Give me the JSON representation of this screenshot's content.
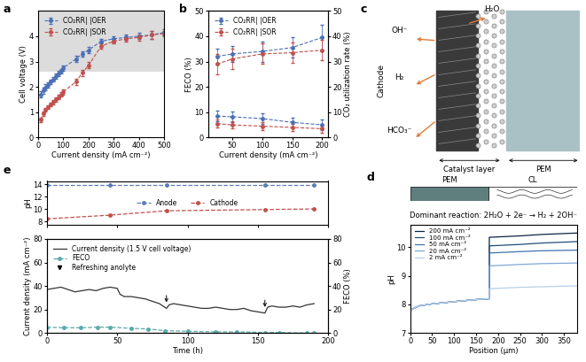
{
  "chart_data": [
    {
      "panel": "a",
      "type": "line",
      "xlabel": "Current density (mA cm⁻²)",
      "ylabel": "Cell voltage (V)",
      "xlim": [
        0,
        500
      ],
      "xticks": [
        0,
        100,
        200,
        300,
        400,
        500
      ],
      "ylim": [
        0,
        5
      ],
      "yticks": [
        0,
        1,
        2,
        3,
        4
      ],
      "legend": "upper left",
      "shaded_band": [
        2.6,
        5
      ],
      "marker": "circle",
      "line_style": "dashed",
      "x": [
        10,
        20,
        30,
        40,
        50,
        60,
        70,
        80,
        90,
        100,
        150,
        175,
        200,
        250,
        300,
        350,
        400,
        450,
        500
      ],
      "series": [
        {
          "name": "CO₂RR| |OER",
          "color": "#4a6fb5",
          "values": [
            1.7,
            1.85,
            1.98,
            2.08,
            2.2,
            2.3,
            2.42,
            2.52,
            2.62,
            2.75,
            3.1,
            3.3,
            3.45,
            3.8,
            3.9,
            3.95,
            4.0,
            4.05,
            4.15
          ],
          "errors": [
            0.12,
            0.12,
            0.12,
            0.1,
            0.1,
            0.1,
            0.1,
            0.1,
            0.1,
            0.1,
            0.12,
            0.12,
            0.12,
            0.1,
            0.1,
            0.1,
            0.12,
            0.15,
            0.12
          ]
        },
        {
          "name": "CO₂RR| |SOR",
          "color": "#c0504d",
          "values": [
            0.7,
            0.95,
            1.1,
            1.2,
            1.3,
            1.4,
            1.5,
            1.6,
            1.7,
            1.8,
            2.2,
            2.55,
            2.85,
            3.6,
            3.8,
            3.9,
            3.95,
            4.05,
            4.1
          ],
          "errors": [
            0.08,
            0.08,
            0.08,
            0.08,
            0.08,
            0.08,
            0.08,
            0.08,
            0.08,
            0.1,
            0.12,
            0.12,
            0.12,
            0.1,
            0.1,
            0.1,
            0.12,
            0.15,
            0.12
          ]
        }
      ]
    },
    {
      "panel": "b",
      "type": "line",
      "xlabel": "Current density (mA cm⁻²)",
      "ylabel": "FECO (%)",
      "y2label": "CO₂ utilization rate (%)",
      "xlim": [
        10,
        210
      ],
      "xticks": [
        50,
        100,
        150,
        200
      ],
      "ylim": [
        0,
        50
      ],
      "yticks": [
        0,
        10,
        20,
        30,
        40,
        50
      ],
      "y2lim": [
        0,
        50
      ],
      "y2ticks": [
        0,
        10,
        20,
        30,
        40,
        50
      ],
      "legend": "upper left",
      "marker": "circle",
      "line_style": "dashed",
      "x": [
        25,
        50,
        100,
        150,
        200
      ],
      "series": [
        {
          "name": "CO₂RR| |OER",
          "color": "#4a6fb5",
          "values": [
            8.5,
            8.2,
            7.5,
            6,
            5
          ],
          "errors": [
            2,
            2,
            2,
            2,
            2
          ]
        },
        {
          "name": "CO₂RR| |SOR",
          "color": "#c0504d",
          "values": [
            5.5,
            5,
            4.5,
            4,
            3.5
          ],
          "errors": [
            1.5,
            1.5,
            1.5,
            1.5,
            1.5
          ]
        },
        {
          "name": "CO₂RR| |OER",
          "color": "#4a6fb5",
          "axis": "y2",
          "values": [
            32,
            33,
            34,
            35.5,
            39.5
          ],
          "errors": [
            3,
            3,
            4,
            4,
            5
          ]
        },
        {
          "name": "CO₂RR| |SOR",
          "color": "#c0504d",
          "axis": "y2",
          "values": [
            29,
            31,
            33,
            33.5,
            34.5
          ],
          "errors": [
            4,
            4,
            4,
            4,
            4
          ]
        }
      ]
    },
    {
      "panel": "d",
      "type": "line",
      "xlabel": "Position (μm)",
      "ylabel": "pH",
      "header": {
        "left": "PEM",
        "right": "CL"
      },
      "annotation": "Dominant reaction: 2H₂O + 2e⁻ → H₂ + 2OH⁻",
      "xlim": [
        0,
        380
      ],
      "xticks": [
        0,
        50,
        100,
        150,
        200,
        250,
        300,
        350
      ],
      "ylim": [
        7,
        10.8
      ],
      "yticks": [
        7,
        8,
        9,
        10
      ],
      "legend": "upper left",
      "line_style": "solid",
      "marker": "none",
      "x": [
        0,
        20,
        50,
        100,
        150,
        180,
        180,
        250,
        300,
        380
      ],
      "series": [
        {
          "name": "200 mA cm⁻²",
          "color": "#0b2545",
          "values": [
            7.8,
            7.95,
            8.02,
            8.1,
            8.17,
            8.2,
            10.35,
            10.4,
            10.45,
            10.5
          ]
        },
        {
          "name": "100 mA cm⁻²",
          "color": "#1f4e79",
          "values": [
            7.8,
            7.95,
            8.02,
            8.1,
            8.17,
            8.2,
            10.05,
            10.1,
            10.15,
            10.2
          ]
        },
        {
          "name": "50 mA cm⁻²",
          "color": "#3f72af",
          "values": [
            7.8,
            7.95,
            8.02,
            8.1,
            8.17,
            8.2,
            9.8,
            9.85,
            9.88,
            9.9
          ]
        },
        {
          "name": "20 mA cm⁻²",
          "color": "#7fa7d6",
          "values": [
            7.8,
            7.95,
            8.02,
            8.1,
            8.17,
            8.2,
            9.35,
            9.4,
            9.43,
            9.45
          ]
        },
        {
          "name": "2 mA cm⁻²",
          "color": "#b8cfe8",
          "values": [
            7.8,
            7.95,
            8.02,
            8.1,
            8.17,
            8.2,
            8.55,
            8.6,
            8.62,
            8.65
          ]
        }
      ]
    },
    {
      "panel": "e",
      "type": "line",
      "ylabel": "pH",
      "tick_labels": "y",
      "xlim": [
        0,
        200
      ],
      "xticks": [
        0,
        50,
        100,
        150,
        200
      ],
      "ylim": [
        7.5,
        14.5
      ],
      "yticks": [
        8,
        10,
        12,
        14
      ],
      "legend": "center",
      "marker": "circle",
      "line_style": "dashed",
      "x": [
        0,
        45,
        85,
        155,
        190
      ],
      "series": [
        {
          "name": "Anode",
          "color": "#5b7db5",
          "values": [
            13.9,
            13.9,
            13.9,
            13.9,
            13.9
          ]
        },
        {
          "name": "Cathode",
          "color": "#c0504d",
          "values": [
            8.4,
            9.0,
            9.7,
            9.9,
            10.0
          ]
        }
      ]
    },
    {
      "type": "line",
      "xlabel": "Time (h)",
      "ylabel": "Current density (mA cm⁻²)",
      "y2label": "FECO (%)",
      "xlim": [
        0,
        200
      ],
      "xticks": [
        0,
        50,
        100,
        150,
        200
      ],
      "ylim": [
        0,
        80
      ],
      "yticks": [
        0,
        20,
        40,
        60,
        80
      ],
      "y2lim": [
        0,
        80
      ],
      "y2ticks": [
        0,
        20,
        40,
        60,
        80
      ],
      "legend": "upper left",
      "annotation": {
        "text": "Refreshing anolyte",
        "x": [
          85,
          155
        ]
      },
      "series": [
        {
          "name": "Current density (1.5 V cell voltage)",
          "color": "#333333",
          "line_style": "solid",
          "marker": "none",
          "x": [
            0,
            5,
            10,
            15,
            20,
            25,
            30,
            35,
            40,
            45,
            50,
            52,
            55,
            60,
            65,
            70,
            75,
            80,
            85,
            87,
            90,
            95,
            100,
            105,
            110,
            115,
            120,
            125,
            130,
            135,
            140,
            145,
            150,
            155,
            157,
            160,
            165,
            170,
            175,
            180,
            185,
            190
          ],
          "values": [
            37,
            38,
            39,
            37,
            35,
            36,
            37,
            36,
            38,
            39,
            38,
            33,
            31,
            31,
            30,
            29,
            27,
            25,
            21,
            24,
            25,
            24,
            23,
            22,
            21,
            21,
            22,
            21,
            20,
            20,
            21,
            19,
            18,
            17,
            22,
            23,
            22,
            22,
            23,
            22,
            24,
            25
          ]
        },
        {
          "name": "FECO",
          "color": "#5aa9a9",
          "axis": "y2",
          "line_style": "dashed",
          "marker": "circle",
          "x": [
            0,
            12,
            24,
            36,
            45,
            60,
            72,
            84,
            100,
            120,
            135,
            155,
            165,
            185,
            190
          ],
          "values": [
            5,
            4.5,
            4.5,
            5,
            5,
            4,
            3.5,
            2,
            1.5,
            1,
            1,
            0.5,
            0.5,
            0,
            0
          ]
        }
      ]
    }
  ],
  "diagram": {
    "panel": "c",
    "side_label": "Cathode",
    "species": [
      "OH⁻",
      "H₂",
      "HCO₃⁻",
      "H₂O"
    ],
    "regions": [
      "Catalyst layer",
      "PEM"
    ]
  }
}
